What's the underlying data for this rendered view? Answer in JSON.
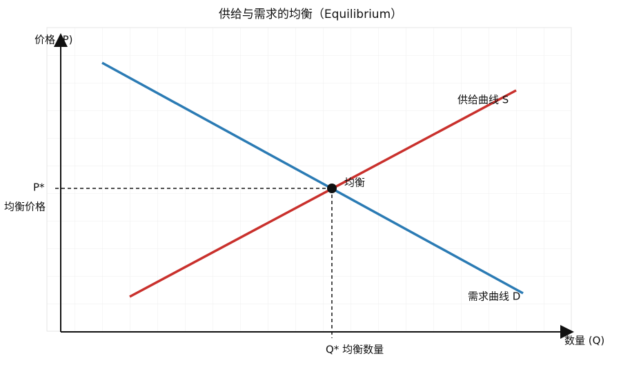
{
  "title": "供给与需求的均衡（Equilibrium）",
  "axes": {
    "y_label": "价格 (P)",
    "x_label": "数量 (Q)"
  },
  "curves": {
    "supply": "供给曲线 S",
    "demand": "需求曲线 D"
  },
  "equilibrium": {
    "label": "均衡",
    "price_marker": "P*",
    "price_label": "均衡价格",
    "quantity_label": "Q* 均衡数量"
  }
}
